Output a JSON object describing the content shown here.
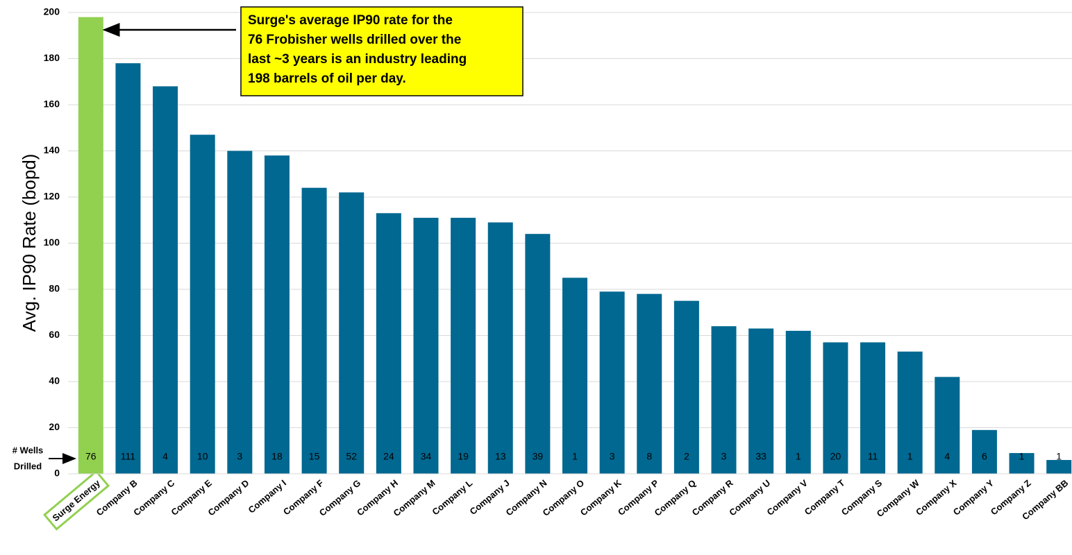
{
  "chart_data": {
    "type": "bar",
    "y_label": "Avg. IP90 Rate (bopd)",
    "categories": [
      "Surge Energy",
      "Company B",
      "Company C",
      "Company E",
      "Company D",
      "Company I",
      "Company F",
      "Company G",
      "Company H",
      "Company M",
      "Company L",
      "Company J",
      "Company N",
      "Company O",
      "Company K",
      "Company P",
      "Company Q",
      "Company R",
      "Company U",
      "Company V",
      "Company T",
      "Company S",
      "Company W",
      "Company X",
      "Company Y",
      "Company Z",
      "Company BB"
    ],
    "values": [
      198,
      178,
      168,
      147,
      140,
      138,
      124,
      122,
      113,
      111,
      111,
      109,
      104,
      85,
      79,
      78,
      75,
      64,
      63,
      62,
      57,
      57,
      53,
      42,
      19,
      9,
      6
    ],
    "colors": [
      "#92d050",
      "#006891",
      "#006891",
      "#006891",
      "#006891",
      "#006891",
      "#006891",
      "#006891",
      "#006891",
      "#006891",
      "#006891",
      "#006891",
      "#006891",
      "#006891",
      "#006891",
      "#006891",
      "#006891",
      "#006891",
      "#006891",
      "#006891",
      "#006891",
      "#006891",
      "#006891",
      "#006891",
      "#006891",
      "#006891",
      "#006891"
    ],
    "wells_label": [
      "# Wells",
      "Drilled"
    ],
    "wells": [
      76,
      111,
      4,
      10,
      3,
      18,
      15,
      52,
      24,
      34,
      19,
      13,
      39,
      1,
      3,
      8,
      2,
      3,
      33,
      1,
      20,
      11,
      1,
      4,
      6,
      1,
      1
    ],
    "annotation": [
      "Surge's average IP90 rate for the",
      "76 Frobisher wells drilled over the",
      "last ~3 years is an industry leading",
      "198 barrels of oil per day."
    ],
    "ylim": [
      0,
      200
    ],
    "yticks": [
      0,
      20,
      40,
      60,
      80,
      100,
      120,
      140,
      160,
      180,
      200
    ],
    "grid": true
  }
}
